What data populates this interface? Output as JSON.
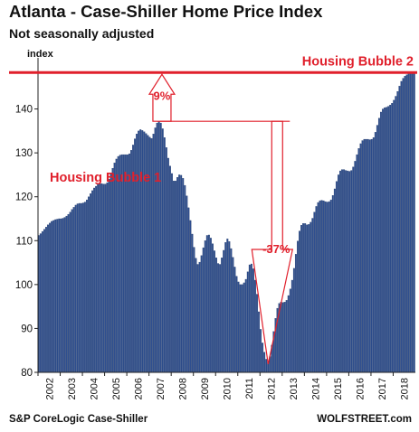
{
  "header": {
    "title": "Atlanta - Case-Shiller Home Price Index",
    "subtitle": "Not seasonally adjusted"
  },
  "footer": {
    "source": "S&P CoreLogic Case-Shiller",
    "credit": "WOLFSTREET.com"
  },
  "colors": {
    "bar": "#2f4f8f",
    "bar_dark": "#1b3566",
    "highlight": "#e0202c",
    "axis": "#222222"
  },
  "chart_data": {
    "type": "bar",
    "ylabel": "index",
    "ylim": [
      80,
      150
    ],
    "yticks": [
      80,
      90,
      100,
      110,
      120,
      130,
      140
    ],
    "xticks": [
      "2002",
      "2003",
      "2004",
      "2005",
      "2006",
      "2007",
      "2008",
      "2009",
      "2010",
      "2011",
      "2012",
      "2013",
      "2014",
      "2015",
      "2016",
      "2017",
      "2018"
    ],
    "period": "monthly, Jan 2002 - Dec 2018",
    "series": [
      {
        "values": [
          111.2,
          111.6,
          112.1,
          112.6,
          113.1,
          113.6,
          114.0,
          114.4,
          114.6,
          114.8,
          114.9,
          115.0,
          115.0,
          115.1,
          115.3,
          115.6,
          116.0,
          116.5,
          117.1,
          117.6,
          118.1,
          118.4,
          118.5,
          118.5,
          118.6,
          118.8,
          119.3,
          120.0,
          120.7,
          121.4,
          122.0,
          122.4,
          122.8,
          123.0,
          123.0,
          122.9,
          122.9,
          123.2,
          124.0,
          125.2,
          126.5,
          127.7,
          128.6,
          129.2,
          129.5,
          129.6,
          129.6,
          129.6,
          129.6,
          129.8,
          130.6,
          131.8,
          133.2,
          134.3,
          135.0,
          135.3,
          135.1,
          134.8,
          134.4,
          134.0,
          133.6,
          133.3,
          134.3,
          135.7,
          136.8,
          137.2,
          136.8,
          135.5,
          133.5,
          131.2,
          128.8,
          127.0,
          125.3,
          123.6,
          123.6,
          124.4,
          125.0,
          124.9,
          124.2,
          122.6,
          120.2,
          117.5,
          114.6,
          111.5,
          108.5,
          106.0,
          104.6,
          105.1,
          106.6,
          108.4,
          110.0,
          111.2,
          111.3,
          110.6,
          109.3,
          107.7,
          106.1,
          104.8,
          104.6,
          106.1,
          107.8,
          109.6,
          110.4,
          109.8,
          108.2,
          106.2,
          104.0,
          101.9,
          100.6,
          100.0,
          100.0,
          100.4,
          101.2,
          102.9,
          104.5,
          104.7,
          103.6,
          101.0,
          97.8,
          93.8,
          89.8,
          86.7,
          84.6,
          83.0,
          82.3,
          83.6,
          86.2,
          89.3,
          92.3,
          94.6,
          95.7,
          96.0,
          95.9,
          96.0,
          96.4,
          97.5,
          99.0,
          101.0,
          103.7,
          106.9,
          109.9,
          112.2,
          113.5,
          113.9,
          113.9,
          113.6,
          113.7,
          114.2,
          115.1,
          116.5,
          117.8,
          118.7,
          119.1,
          119.2,
          119.1,
          118.9,
          118.8,
          118.9,
          119.3,
          120.3,
          121.8,
          123.5,
          125.0,
          125.9,
          126.2,
          126.2,
          126.0,
          125.9,
          125.8,
          126.0,
          126.8,
          128.1,
          129.6,
          131.0,
          132.1,
          132.8,
          133.1,
          133.1,
          133.1,
          133.0,
          133.1,
          133.5,
          134.7,
          136.3,
          137.9,
          139.3,
          140.0,
          140.3,
          140.4,
          140.6,
          140.9,
          141.3,
          142.0,
          142.9,
          144.0,
          145.2,
          146.3,
          147.0,
          147.5,
          147.8,
          148.0,
          148.1,
          148.2,
          148.3
        ]
      }
    ],
    "annotations": {
      "bubble1_label": "Housing Bubble 1",
      "bubble2_label": "Housing Bubble 2",
      "gain_label": "9%",
      "drop_label": "-37%"
    }
  }
}
